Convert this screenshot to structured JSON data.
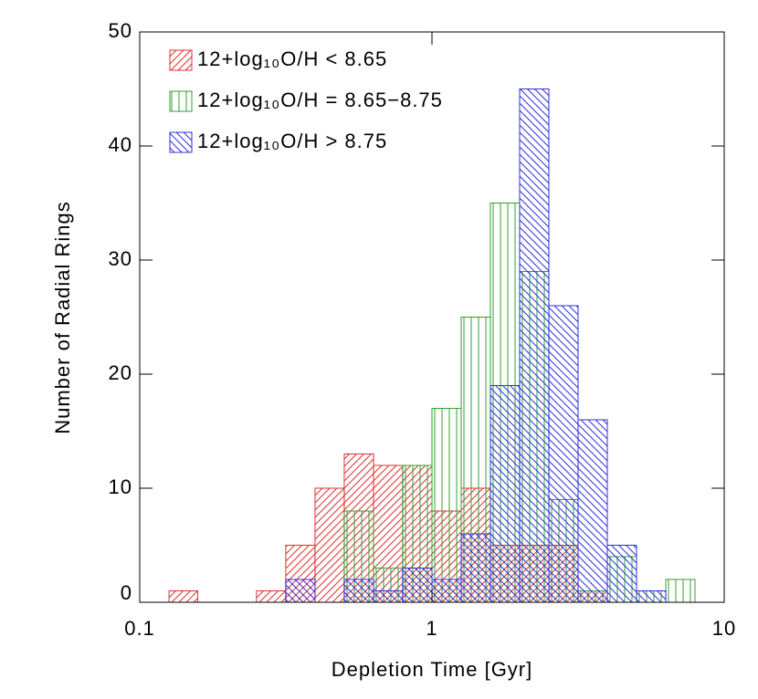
{
  "chart_data": {
    "type": "histogram",
    "xlabel": "Depletion Time [Gyr]",
    "ylabel": "Number of Radial Rings",
    "bins": [
      0.1,
      0.126,
      0.158,
      0.2,
      0.251,
      0.316,
      0.398,
      0.501,
      0.631,
      0.794,
      1,
      1.259,
      1.585,
      1.995,
      2.512,
      3.162,
      3.981,
      5.012,
      6.31,
      7.943,
      10
    ],
    "series": [
      {
        "name": "12+log₁₀O/H < 8.65",
        "color": "#e03030",
        "hatch": "/",
        "values": [
          0,
          1,
          0,
          0,
          1,
          5,
          10,
          13,
          12,
          12,
          8,
          10,
          5,
          5,
          5,
          1,
          0,
          0,
          0,
          0
        ]
      },
      {
        "name": "12+log₁₀O/H = 8.65−8.75",
        "color": "#30a030",
        "hatch": "|",
        "values": [
          0,
          0,
          0,
          0,
          0,
          0,
          0,
          8,
          3,
          12,
          17,
          25,
          35,
          29,
          9,
          1,
          4,
          1,
          2,
          0
        ]
      },
      {
        "name": "12+log₁₀O/H > 8.75",
        "color": "#3030e0",
        "hatch": "\\",
        "values": [
          0,
          0,
          0,
          0,
          0,
          2,
          0,
          2,
          1,
          3,
          2,
          6,
          19,
          45,
          26,
          16,
          5,
          1,
          0,
          0
        ]
      }
    ],
    "xlim": [
      0.1,
      10
    ],
    "xticks": [
      0.1,
      1,
      10
    ],
    "xscale": "log",
    "ylim": [
      0,
      50
    ],
    "yticks": [
      0,
      10,
      20,
      30,
      40,
      50
    ],
    "legend": "upper left"
  }
}
